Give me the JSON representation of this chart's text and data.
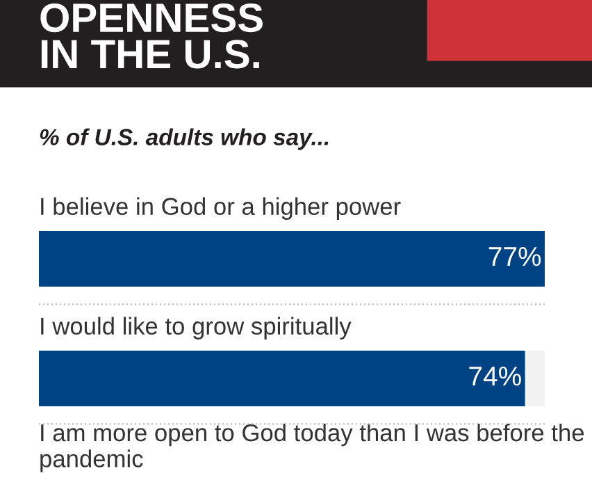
{
  "chart_data": {
    "type": "bar",
    "orientation": "horizontal",
    "title": "OPENNESS\nIN THE U.S.",
    "subtitle": "% of U.S. adults who say...",
    "categories": [
      "I believe in God or a higher power",
      "I would like to grow spiritually",
      "I am more open to God today than I was before the pandemic"
    ],
    "values": [
      77,
      74,
      null
    ],
    "value_labels": [
      "77%",
      "74%",
      null
    ],
    "color": "#004385",
    "xlim": [
      0,
      77
    ],
    "tick_labels": false,
    "legend": false
  }
}
